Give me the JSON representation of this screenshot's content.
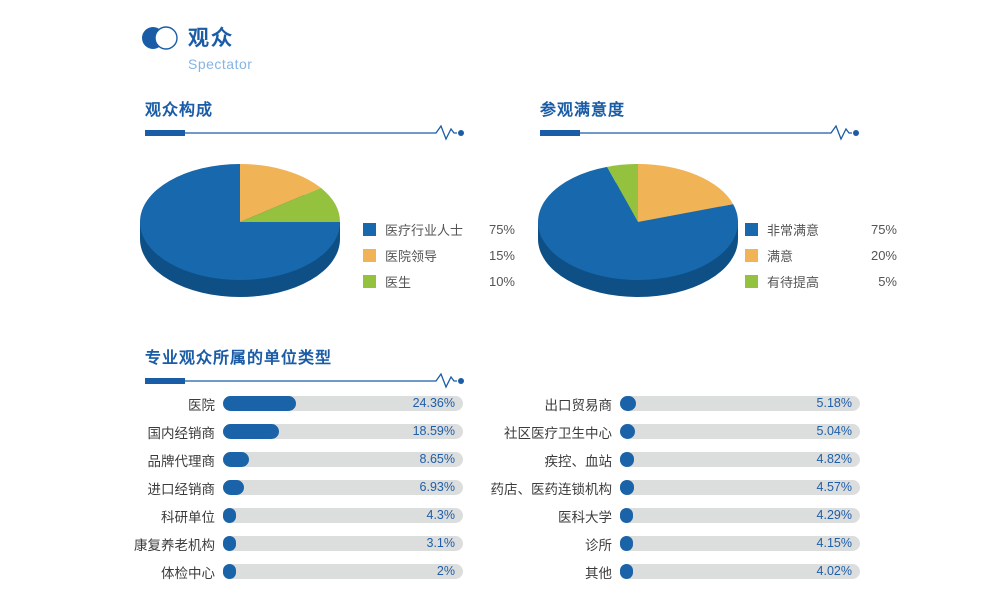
{
  "header": {
    "title": "观众",
    "subtitle": "Spectator"
  },
  "colors": {
    "primary": "#1a5ca6",
    "pie_blue": "#1768ac",
    "pie_orange": "#f0b456",
    "pie_green": "#95c23e",
    "pie_depth": "#0e4f86",
    "bar_fill": "#1b63a9",
    "bar_track": "#dcdddd",
    "percent_text": "#1e5fa9",
    "subtitle_text": "#85b5e2"
  },
  "chart_data": [
    {
      "type": "pie",
      "style": "3d",
      "title": "观众构成",
      "labels": [
        "医疗行业人士",
        "医院领导",
        "医生"
      ],
      "values": [
        75,
        15,
        10
      ],
      "percent_labels": [
        "75%",
        "15%",
        "10%"
      ],
      "colors": [
        "#1768ac",
        "#f0b456",
        "#95c23e"
      ],
      "depth_color": "#0e4f86",
      "start_angle": 90,
      "draw_order": [
        0,
        1,
        2
      ],
      "legend_position": "right"
    },
    {
      "type": "pie",
      "style": "3d",
      "title": "参观满意度",
      "labels": [
        "非常满意",
        "满意",
        "有待提高"
      ],
      "values": [
        75,
        20,
        5
      ],
      "percent_labels": [
        "75%",
        "20%",
        "5%"
      ],
      "colors": [
        "#1768ac",
        "#f0b456",
        "#95c23e"
      ],
      "depth_color": "#0e4f86",
      "start_angle": 72,
      "draw_order": [
        0,
        2,
        1
      ],
      "legend_position": "right"
    },
    {
      "type": "bar",
      "orientation": "horizontal",
      "title": "专业观众所属的单位类型",
      "bar_color": "#1b63a9",
      "track_color": "#dcdddd",
      "columns": [
        {
          "categories": [
            "医院",
            "国内经销商",
            "品牌代理商",
            "进口经销商",
            "科研单位",
            "康复养老机构",
            "体检中心"
          ],
          "values": [
            24.36,
            18.59,
            8.65,
            6.93,
            4.3,
            3.1,
            2
          ],
          "value_labels": [
            "24.36%",
            "18.59%",
            "8.65%",
            "6.93%",
            "4.3%",
            "3.1%",
            "2%"
          ]
        },
        {
          "categories": [
            "出口贸易商",
            "社区医疗卫生中心",
            "疾控、血站",
            "药店、医药连锁机构",
            "医科大学",
            "诊所",
            "其他"
          ],
          "values": [
            5.18,
            5.04,
            4.82,
            4.57,
            4.29,
            4.15,
            4.02
          ],
          "value_labels": [
            "5.18%",
            "5.04%",
            "4.82%",
            "4.57%",
            "4.29%",
            "4.15%",
            "4.02%"
          ]
        }
      ]
    }
  ]
}
